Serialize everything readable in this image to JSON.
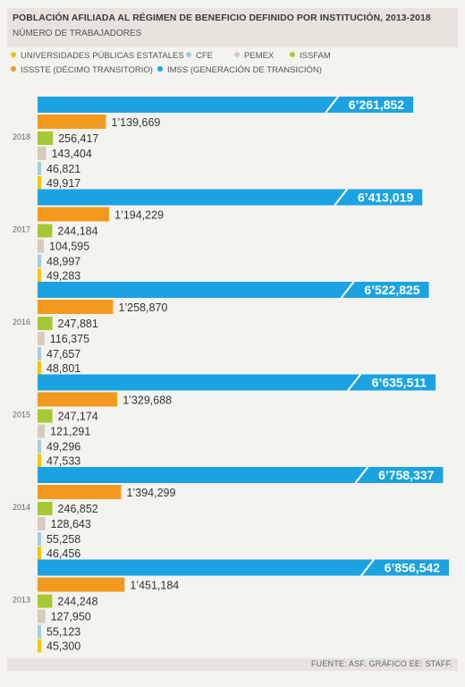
{
  "header": {
    "title": "POBLACIÓN AFILIADA AL RÉGIMEN DE BENEFICIO DEFINIDO POR INSTITUCIÓN, 2013-2018",
    "subtitle": "NÚMERO DE TRABAJADORES"
  },
  "legend": [
    {
      "label": "UNIVERSIDADES PÚBLICAS ESTATALES",
      "color": "#f5c400"
    },
    {
      "label": "CFE",
      "color": "#9fcfdc"
    },
    {
      "label": "PEMEX",
      "color": "#d7cbbd"
    },
    {
      "label": "ISSFAM",
      "color": "#a8c734"
    },
    {
      "label": "ISSSTE (DÉCIMO TRANSITORIO)",
      "color": "#f39a1e"
    },
    {
      "label": "IMSS (GENERACIÓN DE TRANSICIÓN)",
      "color": "#1aa3e0"
    }
  ],
  "chart_data": {
    "type": "bar",
    "orientation": "horizontal",
    "categories": [
      "2018",
      "2017",
      "2016",
      "2015",
      "2014",
      "2013"
    ],
    "series": [
      {
        "name": "IMSS (GENERACIÓN DE TRANSICIÓN)",
        "color": "#1aa3e0",
        "values": [
          6261852,
          6413019,
          6522825,
          6635511,
          6758337,
          6856542
        ],
        "labels": [
          "6’261,852",
          "6’413,019",
          "6’522,825",
          "6’635,511",
          "6’758,337",
          "6’856,542"
        ]
      },
      {
        "name": "ISSSTE (DÉCIMO TRANSITORIO)",
        "color": "#f39a1e",
        "values": [
          1139669,
          1194229,
          1258870,
          1329688,
          1394299,
          1451184
        ],
        "labels": [
          "1’139,669",
          "1’194,229",
          "1’258,870",
          "1’329,688",
          "1’394,299",
          "1’451,184"
        ]
      },
      {
        "name": "ISSFAM",
        "color": "#a8c734",
        "values": [
          256417,
          244184,
          247881,
          247174,
          246852,
          244248
        ],
        "labels": [
          "256,417",
          "244,184",
          "247,881",
          "247,174",
          "246,852",
          "244,248"
        ]
      },
      {
        "name": "PEMEX",
        "color": "#d7cbbd",
        "values": [
          143404,
          104595,
          116375,
          121291,
          128643,
          127950
        ],
        "labels": [
          "143,404",
          "104,595",
          "116,375",
          "121,291",
          "128,643",
          "127,950"
        ]
      },
      {
        "name": "CFE",
        "color": "#9fcfdc",
        "values": [
          46821,
          48997,
          47657,
          49296,
          55258,
          55123
        ],
        "labels": [
          "46,821",
          "48,997",
          "47,657",
          "49,296",
          "55,258",
          "55,123"
        ]
      },
      {
        "name": "UNIVERSIDADES PÚBLICAS ESTATALES",
        "color": "#f5c400",
        "values": [
          49917,
          49283,
          48801,
          47533,
          46456,
          45300
        ],
        "labels": [
          "49,917",
          "49,283",
          "48,801",
          "47,533",
          "46,456",
          "45,300"
        ]
      }
    ]
  },
  "footer": {
    "source": "FUENTE: ASF. GRÁFICO EE: STAFF."
  }
}
